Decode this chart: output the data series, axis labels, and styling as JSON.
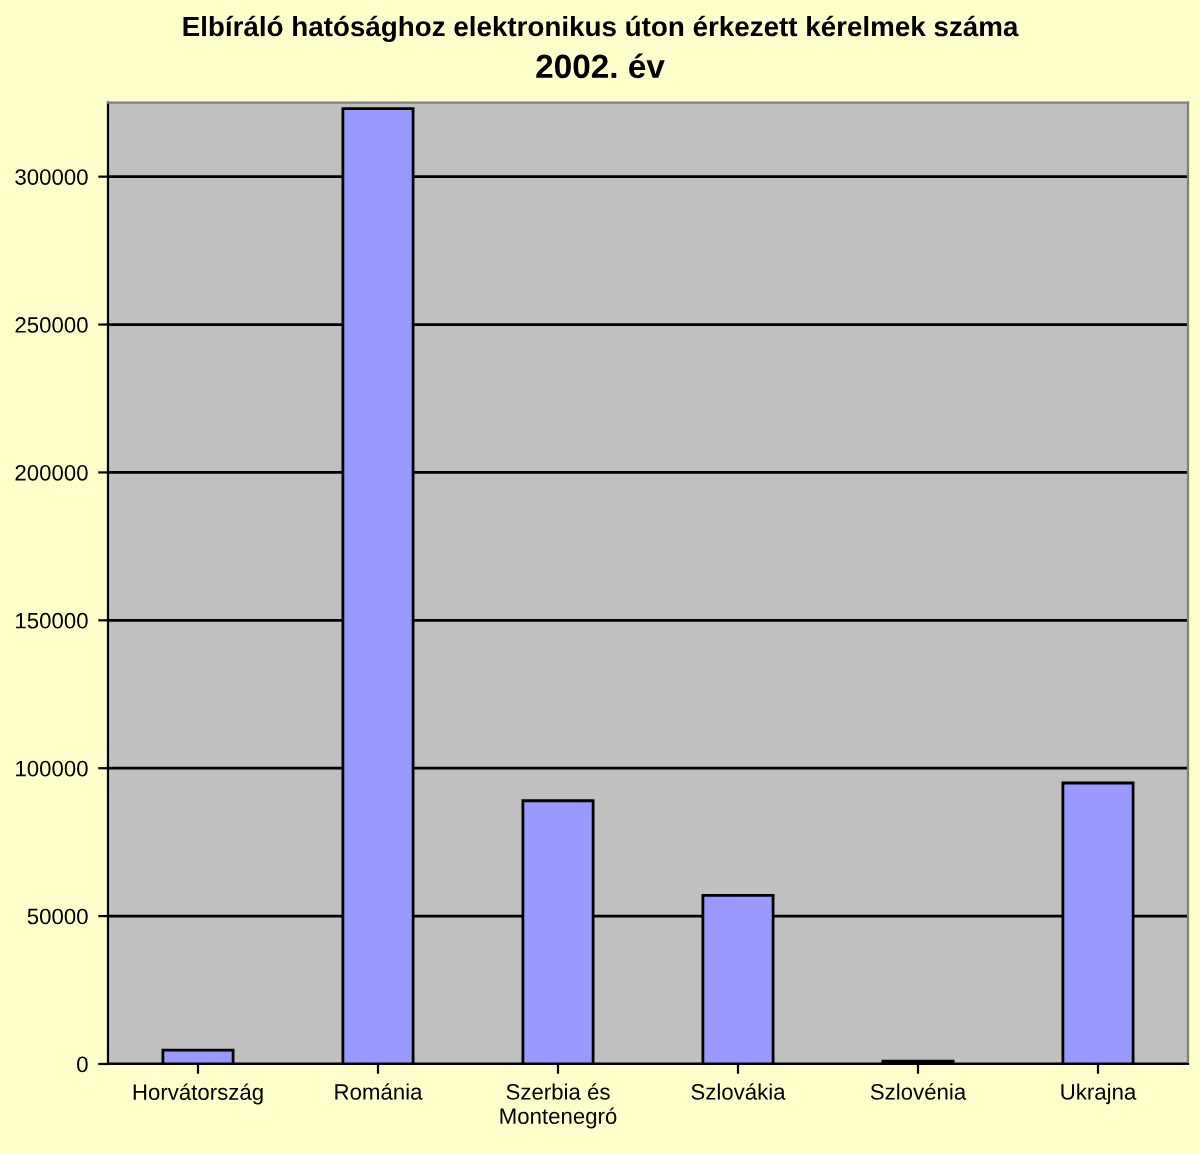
{
  "chart_data": {
    "type": "bar",
    "title": "Elbíráló hatósághoz elektronikus úton érkezett kérelmek száma",
    "subtitle": "2002. év",
    "categories": [
      "Horvátország",
      "Románia",
      "Szerbia és\nMontenegró",
      "Szlovákia",
      "Szlovénia",
      "Ukrajna"
    ],
    "values": [
      4700,
      323000,
      89000,
      57000,
      1000,
      95000
    ],
    "color": "#9999ff",
    "ylim": [
      0,
      325000
    ],
    "yticks": [
      0,
      50000,
      100000,
      150000,
      200000,
      250000,
      300000
    ],
    "grid": "y",
    "legend": false
  }
}
